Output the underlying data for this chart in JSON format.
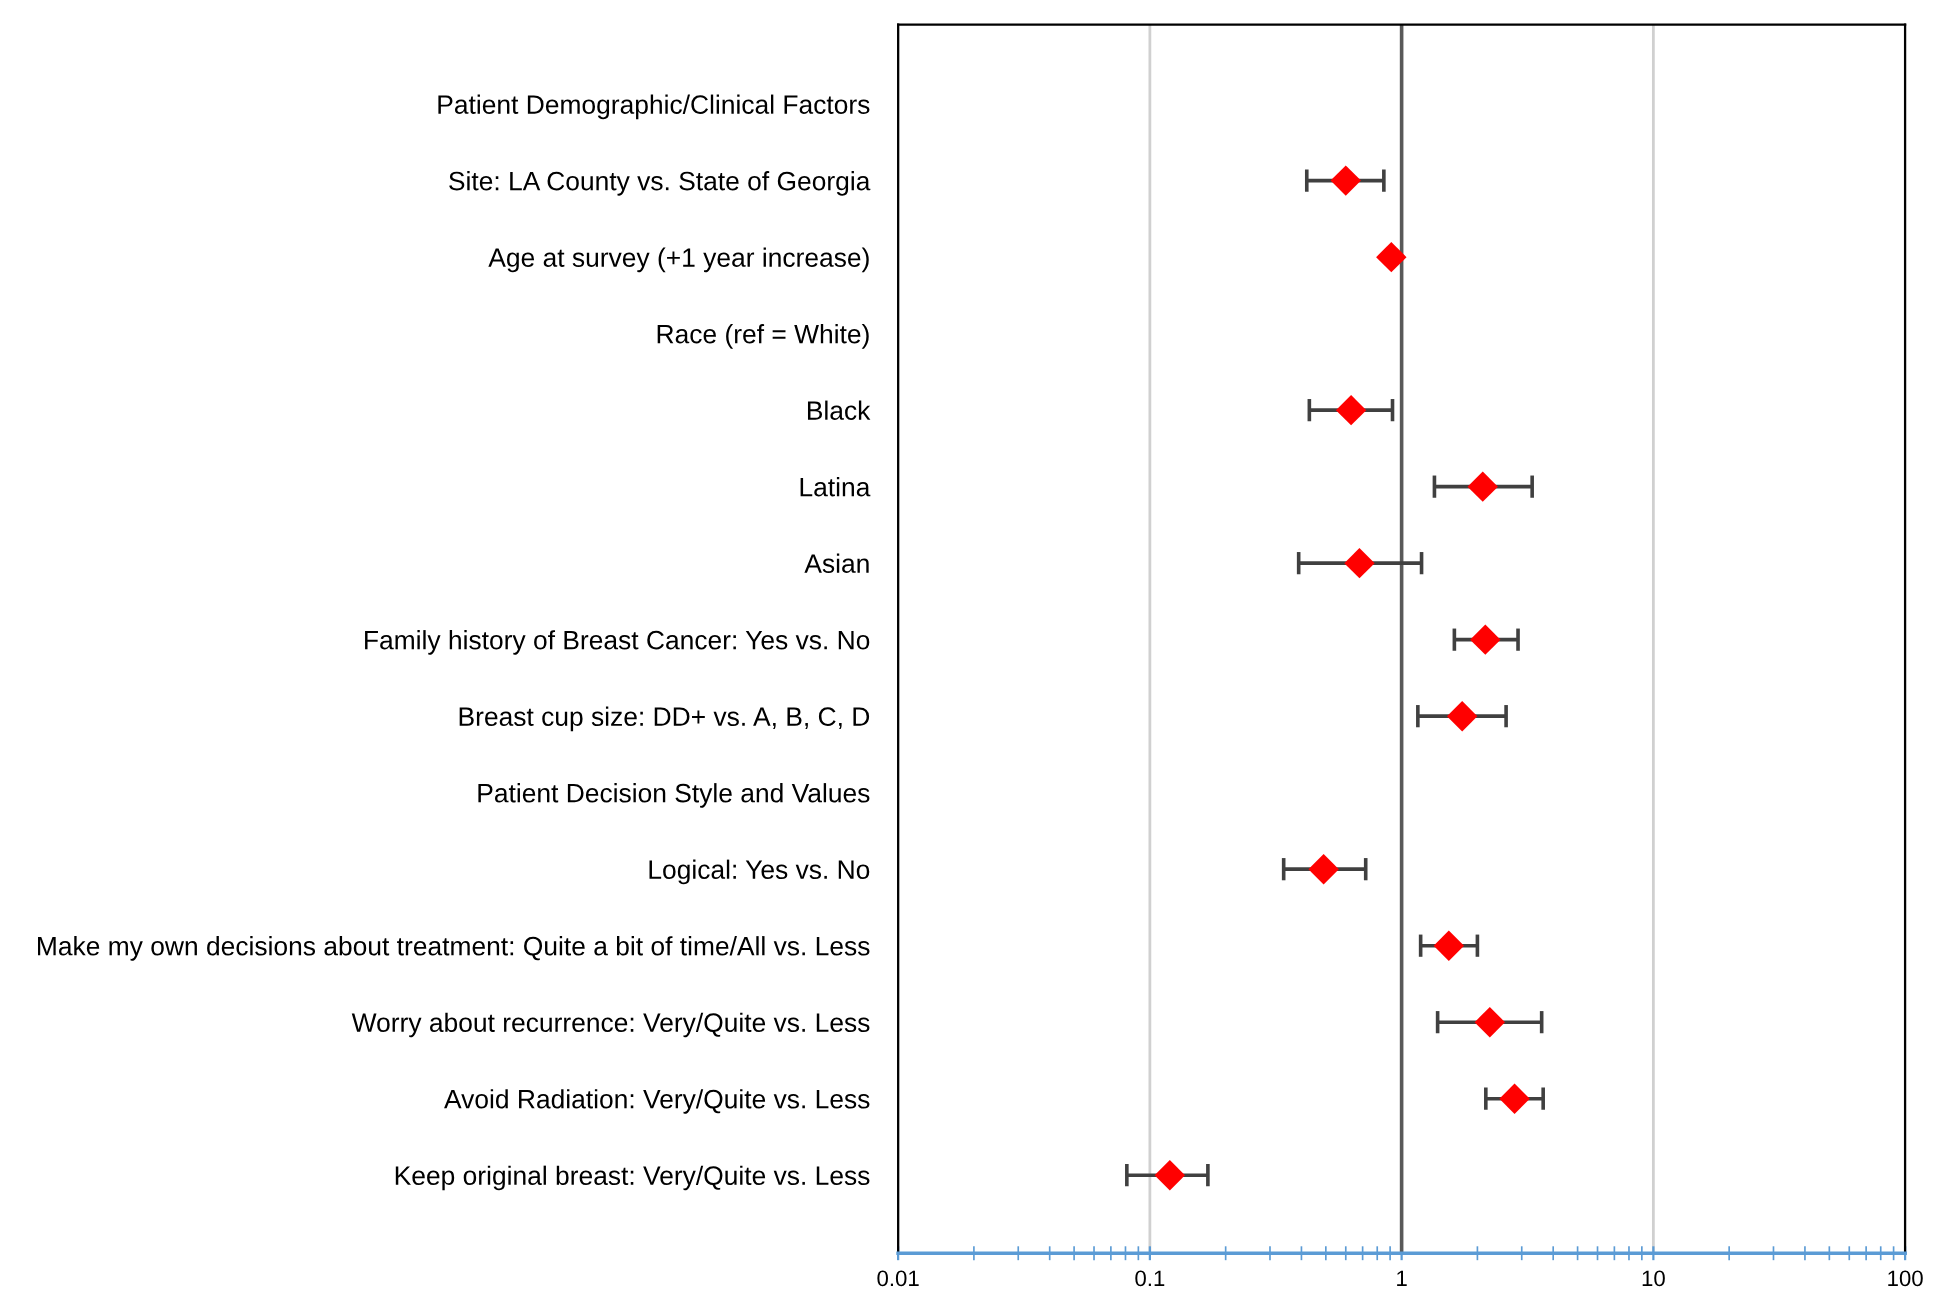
{
  "chart_data": {
    "type": "scatter",
    "orientation": "horizontal",
    "log": "x",
    "categories": [
      "Patient Demographic/Clinical Factors",
      "Site: LA County vs. State of Georgia",
      "Age at survey (+1 year increase)",
      "Race (ref = White)",
      "Black",
      "Latina",
      "Asian",
      "Family history of Breast Cancer: Yes vs. No",
      "Breast cup size: DD+ vs. A, B, C, D",
      "Patient Decision Style and Values",
      "Logical: Yes vs. No",
      "Make my own decisions about treatment: Quite a bit of time/All vs. Less",
      "Worry about recurrence: Very/Quite vs. Less",
      "Avoid Radiation: Very/Quite vs. Less",
      "Keep original breast: Very/Quite vs. Less"
    ],
    "series": [
      {
        "color": "#ff0000",
        "values": [
          null,
          0.6,
          0.91,
          null,
          0.63,
          2.1,
          0.68,
          2.15,
          1.74,
          null,
          0.49,
          1.54,
          2.24,
          2.81,
          0.12
        ],
        "errors": [
          null,
          [
            0.42,
            0.85
          ],
          null,
          null,
          [
            0.43,
            0.92
          ],
          [
            1.35,
            3.3
          ],
          [
            0.39,
            1.2
          ],
          [
            1.62,
            2.9
          ],
          [
            1.16,
            2.6
          ],
          null,
          [
            0.34,
            0.72
          ],
          [
            1.19,
            2.0
          ],
          [
            1.39,
            3.6
          ],
          [
            2.16,
            3.65
          ],
          [
            0.081,
            0.17
          ]
        ]
      }
    ],
    "marker": "diamond",
    "xlim": [
      0.01,
      100
    ],
    "xticks": [
      0.01,
      0.1,
      1,
      10,
      100
    ],
    "grid": "x",
    "ref_lines": [
      {
        "axis": "x",
        "value": 1,
        "color": "#595959"
      }
    ]
  }
}
